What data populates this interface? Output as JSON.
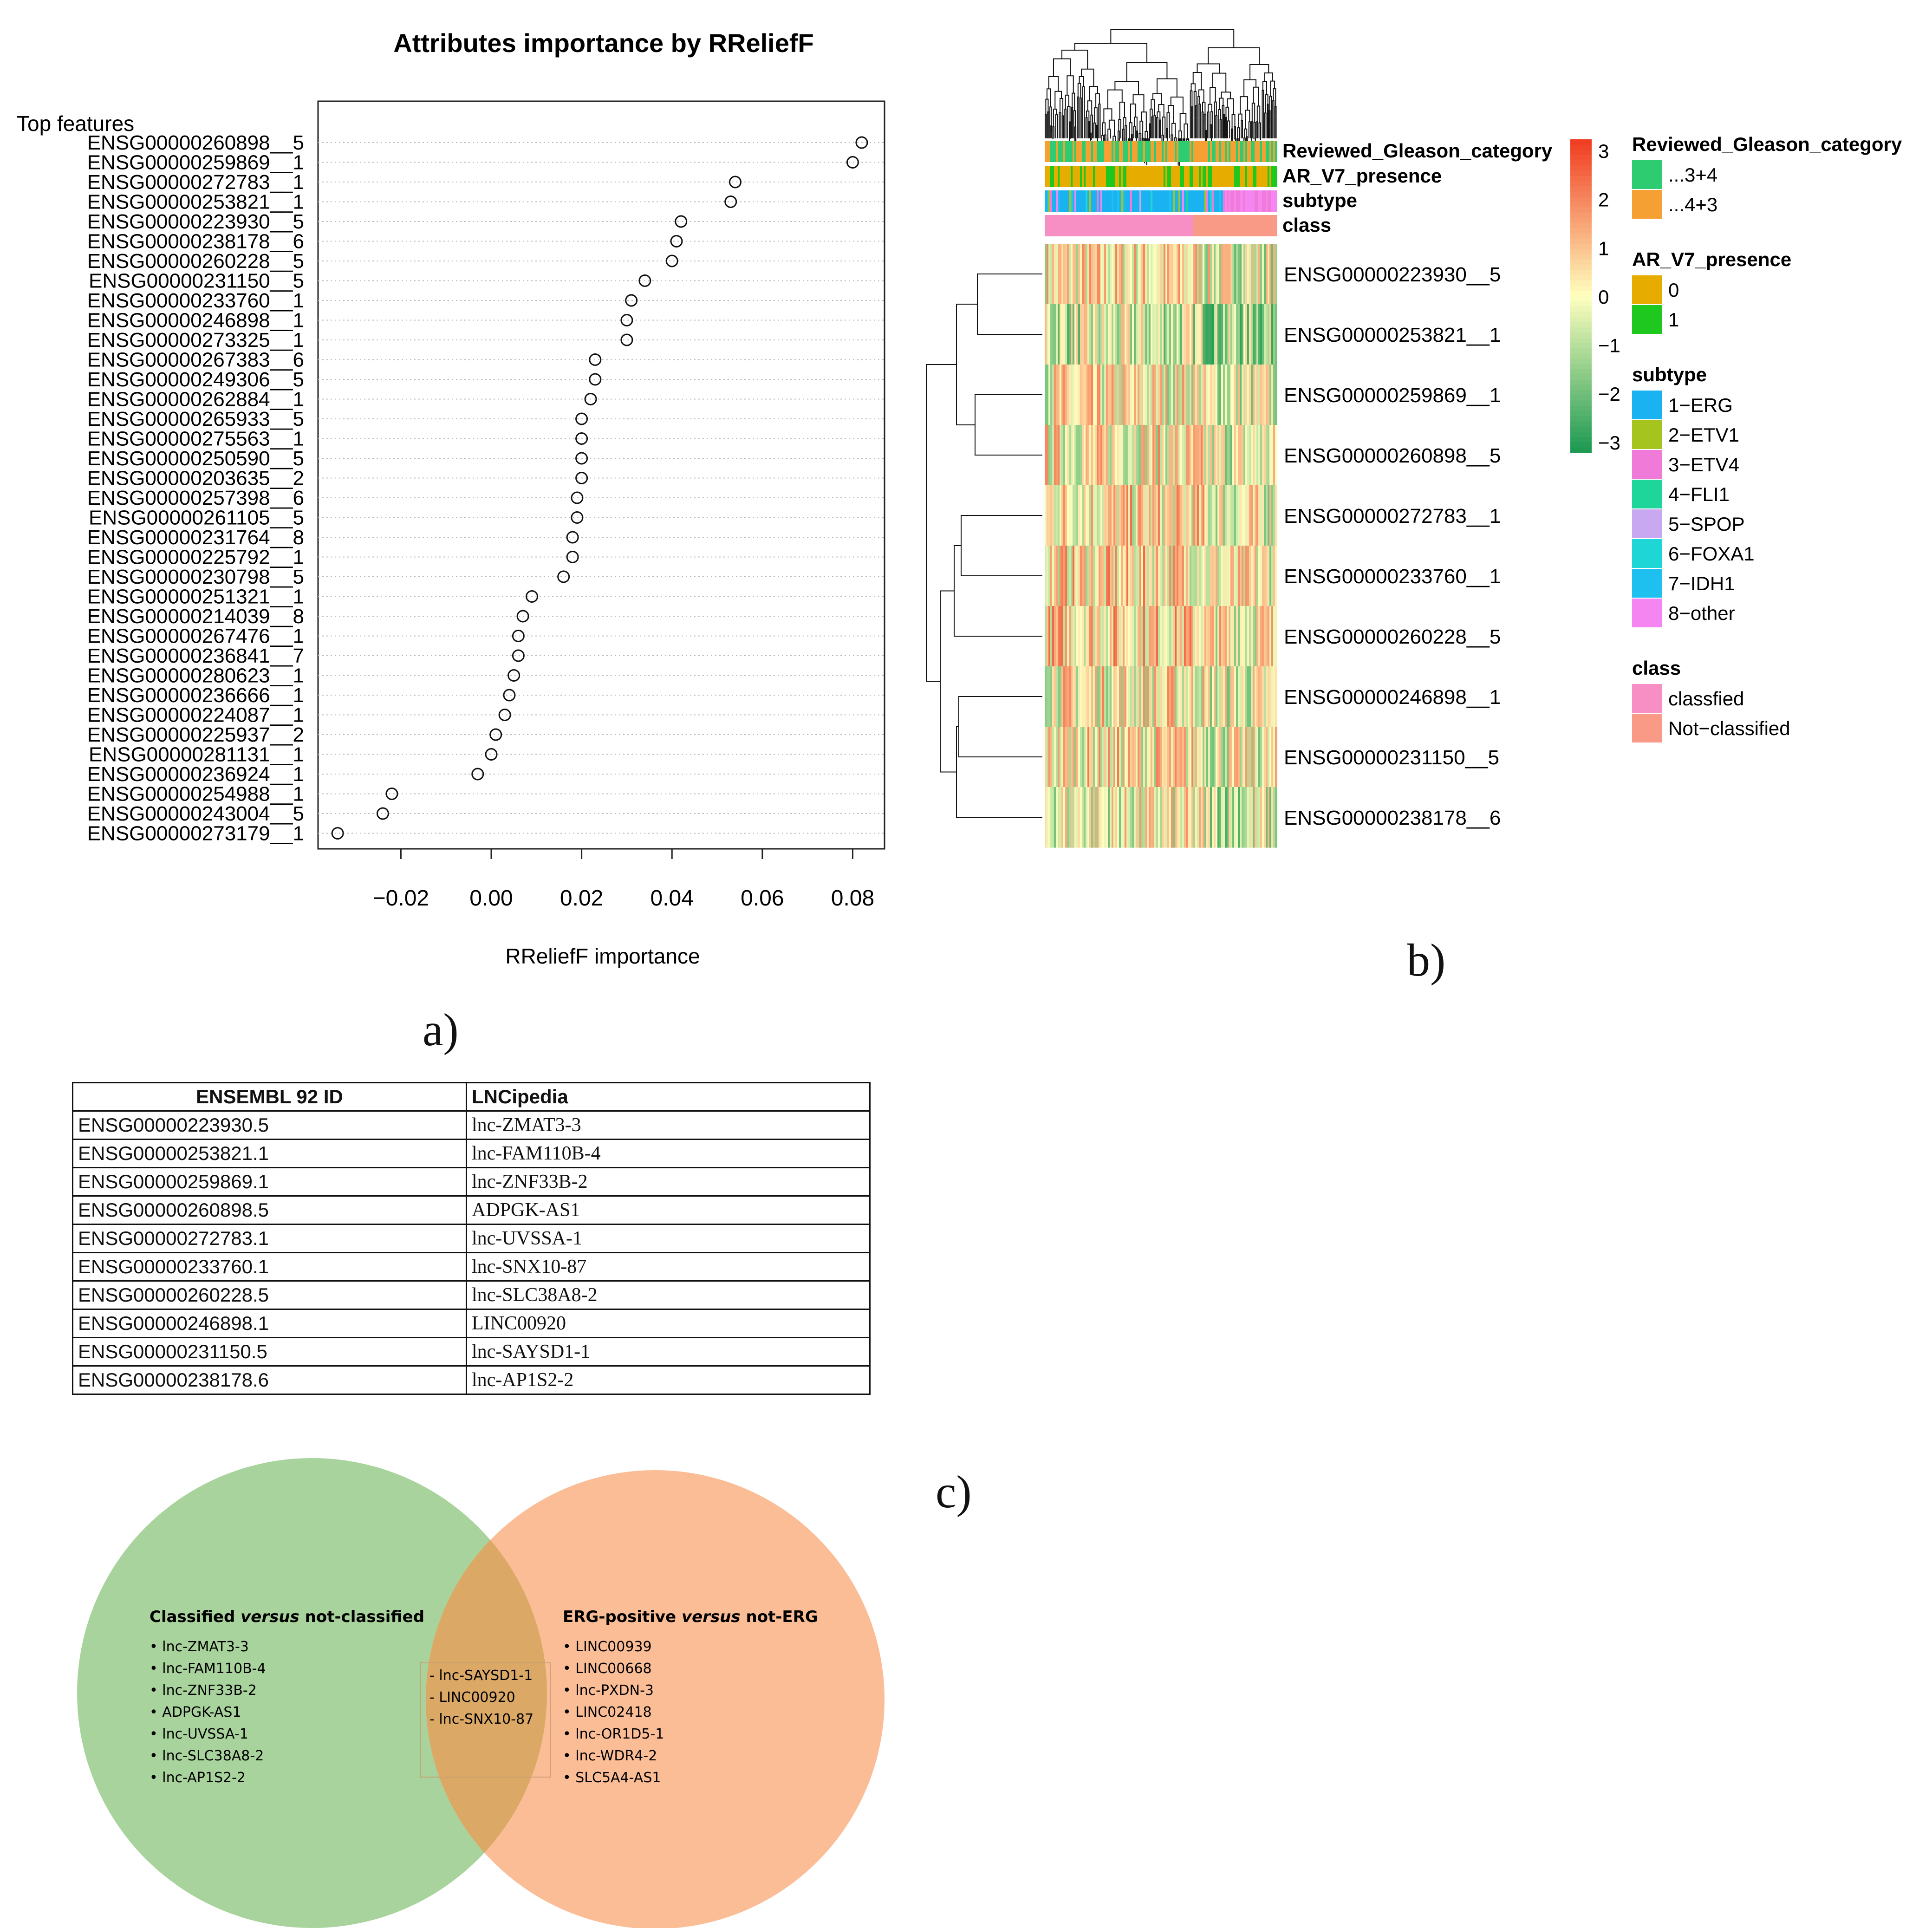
{
  "panel_labels": {
    "a": "a)",
    "b": "b)",
    "c": "c)"
  },
  "chart_data": [
    {
      "type": "scatter",
      "title": "Attributes importance by RReliefF",
      "xlabel": "RReliefF importance",
      "ylabel": "Top features",
      "xlim": [
        -0.035,
        0.088
      ],
      "xticks": [
        -0.02,
        0.0,
        0.02,
        0.04,
        0.06,
        0.08
      ],
      "xtick_labels": [
        "−0.02",
        "0.00",
        "0.02",
        "0.04",
        "0.06",
        "0.08"
      ],
      "grid": "horizontal dotted",
      "features": [
        "ENSG00000260898__5",
        "ENSG00000259869__1",
        "ENSG00000272783__1",
        "ENSG00000253821__1",
        "ENSG00000223930__5",
        "ENSG00000238178__6",
        "ENSG00000260228__5",
        "ENSG00000231150__5",
        "ENSG00000233760__1",
        "ENSG00000246898__1",
        "ENSG00000273325__1",
        "ENSG00000267383__6",
        "ENSG00000249306__5",
        "ENSG00000262884__1",
        "ENSG00000265933__5",
        "ENSG00000275563__1",
        "ENSG00000250590__5",
        "ENSG00000203635__2",
        "ENSG00000257398__6",
        "ENSG00000261105__5",
        "ENSG00000231764__8",
        "ENSG00000225792__1",
        "ENSG00000230798__5",
        "ENSG00000251321__1",
        "ENSG00000214039__8",
        "ENSG00000267476__1",
        "ENSG00000236841__7",
        "ENSG00000280623__1",
        "ENSG00000236666__1",
        "ENSG00000224087__1",
        "ENSG00000225937__2",
        "ENSG00000281131__1",
        "ENSG00000236924__1",
        "ENSG00000254988__1",
        "ENSG00000243004__5",
        "ENSG00000273179__1"
      ],
      "values": [
        0.082,
        0.08,
        0.054,
        0.053,
        0.042,
        0.041,
        0.04,
        0.034,
        0.031,
        0.03,
        0.03,
        0.023,
        0.023,
        0.022,
        0.02,
        0.02,
        0.02,
        0.02,
        0.019,
        0.019,
        0.018,
        0.018,
        0.016,
        0.009,
        0.007,
        0.006,
        0.006,
        0.005,
        0.004,
        0.003,
        0.001,
        0.0,
        -0.003,
        -0.022,
        -0.024,
        -0.034
      ]
    },
    {
      "type": "heatmap",
      "rows": [
        "ENSG00000223930__5",
        "ENSG00000253821__1",
        "ENSG00000259869__1",
        "ENSG00000260898__5",
        "ENSG00000272783__1",
        "ENSG00000233760__1",
        "ENSG00000260228__5",
        "ENSG00000246898__1",
        "ENSG00000231150__5",
        "ENSG00000238178__6"
      ],
      "annotation_tracks": [
        "Reviewed_Gleason_category",
        "AR_V7_presence",
        "subtype",
        "class"
      ],
      "color_scale": {
        "ticks": [
          3,
          2,
          1,
          0,
          -1,
          -2,
          -3
        ],
        "tick_labels": [
          "3",
          "2",
          "1",
          "0",
          "−1",
          "−2",
          "−3"
        ],
        "low": "#1a9850",
        "mid": "#ffffbf",
        "high": "#f03b20"
      },
      "legend": [
        {
          "title": "Reviewed_Gleason_category",
          "items": [
            {
              "label": "...3+4",
              "color": "#2ecc71"
            },
            {
              "label": "...4+3",
              "color": "#f5a033"
            }
          ]
        },
        {
          "title": "AR_V7_presence",
          "items": [
            {
              "label": "0",
              "color": "#e6ad00"
            },
            {
              "label": "1",
              "color": "#1ec81e"
            }
          ]
        },
        {
          "title": "subtype",
          "items": [
            {
              "label": "1−ERG",
              "color": "#1ab2f0"
            },
            {
              "label": "2−ETV1",
              "color": "#a6c41e"
            },
            {
              "label": "3−ETV4",
              "color": "#f07ad8"
            },
            {
              "label": "4−FLI1",
              "color": "#1ed69a"
            },
            {
              "label": "5−SPOP",
              "color": "#c8a8f0"
            },
            {
              "label": "6−FOXA1",
              "color": "#1ed6d6"
            },
            {
              "label": "7−IDH1",
              "color": "#1ec0f0"
            },
            {
              "label": "8−other",
              "color": "#f585f0"
            }
          ]
        },
        {
          "title": "class",
          "items": [
            {
              "label": "classfied",
              "color": "#f78fc4"
            },
            {
              "label": "Not−classified",
              "color": "#f99a86"
            }
          ]
        }
      ]
    }
  ],
  "table": {
    "headers": [
      "ENSEMBL 92 ID",
      "LNCipedia"
    ],
    "rows": [
      [
        "ENSG00000223930.5",
        "lnc-ZMAT3-3"
      ],
      [
        "ENSG00000253821.1",
        "lnc-FAM110B-4"
      ],
      [
        "ENSG00000259869.1",
        "lnc-ZNF33B-2"
      ],
      [
        "ENSG00000260898.5",
        "ADPGK-AS1"
      ],
      [
        "ENSG00000272783.1",
        "lnc-UVSSA-1"
      ],
      [
        "ENSG00000233760.1",
        "lnc-SNX10-87"
      ],
      [
        "ENSG00000260228.5",
        "lnc-SLC38A8-2"
      ],
      [
        "ENSG00000246898.1",
        "LINC00920"
      ],
      [
        "ENSG00000231150.5",
        "lnc-SAYSD1-1"
      ],
      [
        "ENSG00000238178.6",
        "lnc-AP1S2-2"
      ]
    ]
  },
  "venn": {
    "left": {
      "title_pre": "Classified ",
      "title_em": "versus",
      "title_post": " not-classified",
      "items": [
        "lnc-ZMAT3-3",
        "lnc-FAM110B-4",
        "lnc-ZNF33B-2",
        "ADPGK-AS1",
        "lnc-UVSSA-1",
        "lnc-SLC38A8-2",
        "lnc-AP1S2-2"
      ],
      "color": "#a9d39c"
    },
    "right": {
      "title_pre": "ERG-positive ",
      "title_em": "versus",
      "title_post": " not-ERG",
      "items": [
        "LINC00939",
        "LINC00668",
        "lnc-PXDN-3",
        "LINC02418",
        "lnc-OR1D5-1",
        "lnc-WDR4-2",
        "SLC5A4-AS1"
      ],
      "color": "#fbbd96"
    },
    "intersection": {
      "items": [
        "lnc-SAYSD1-1",
        "LINC00920",
        "lnc-SNX10-87"
      ],
      "color": "#dba866"
    }
  }
}
